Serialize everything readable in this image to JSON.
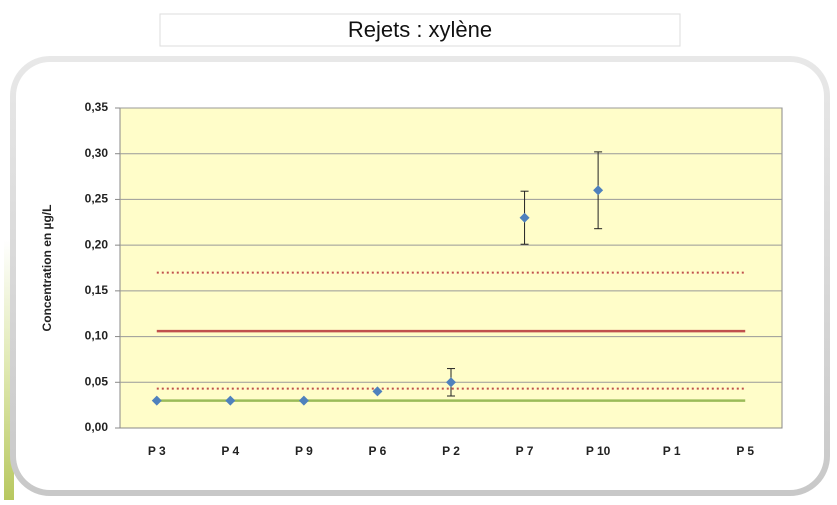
{
  "chart_data": {
    "type": "scatter",
    "title": "Rejets : xylène",
    "y_label": "Concentration en µg/L",
    "categories": [
      "P 3",
      "P 4",
      "P 9",
      "P 6",
      "P 2",
      "P 7",
      "P 10",
      "P 1",
      "P 5"
    ],
    "series": [
      {
        "color": "#4f81bd",
        "values": [
          0.03,
          0.03,
          0.03,
          0.04,
          0.05,
          0.23,
          0.26,
          null,
          null
        ],
        "errors": [
          null,
          null,
          null,
          null,
          0.015,
          0.029,
          0.042,
          null,
          null
        ]
      }
    ],
    "reference_lines": [
      {
        "value": 0.17,
        "color": "#c0504d",
        "style": "dotted"
      },
      {
        "value": 0.106,
        "color": "#c0504d",
        "style": "solid"
      },
      {
        "value": 0.043,
        "color": "#c0504d",
        "style": "dotted"
      },
      {
        "value": 0.03,
        "color": "#9bbb59",
        "style": "solid"
      }
    ],
    "ylim": [
      0,
      0.35
    ],
    "yticks": [
      {
        "value": 0,
        "label": "0,00"
      },
      {
        "value": 0.05,
        "label": "0,05"
      },
      {
        "value": 0.1,
        "label": "0,10"
      },
      {
        "value": 0.15,
        "label": "0,15"
      },
      {
        "value": 0.2,
        "label": "0,20"
      },
      {
        "value": 0.25,
        "label": "0,25"
      },
      {
        "value": 0.3,
        "label": "0,30"
      },
      {
        "value": 0.35,
        "label": "0,35"
      }
    ],
    "grid": true,
    "plot_background": "#fffdc9"
  }
}
